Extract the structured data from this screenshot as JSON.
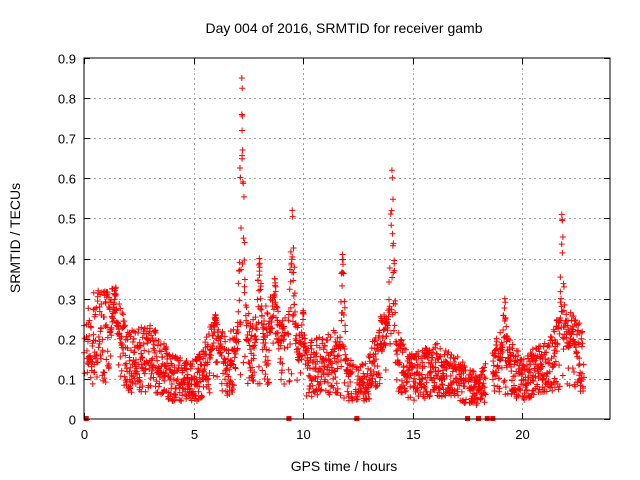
{
  "chart_data": {
    "type": "scatter",
    "title": "Day 004 of 2016, SRMTID for receiver gamb",
    "xlabel": "GPS time / hours",
    "ylabel": "SRMTID / TECUs",
    "xlim": [
      0,
      24
    ],
    "ylim": [
      0,
      0.9
    ],
    "x_ticks": [
      0,
      5,
      10,
      15,
      20
    ],
    "x_tick_labels": [
      "0",
      "5",
      "10",
      "15",
      "20"
    ],
    "y_ticks": [
      0,
      0.1,
      0.2,
      0.3,
      0.4,
      0.5,
      0.6,
      0.7,
      0.8,
      0.9
    ],
    "y_tick_labels": [
      "0",
      "0.1",
      "0.2",
      "0.3",
      "0.4",
      "0.5",
      "0.6",
      "0.7",
      "0.8",
      "0.9"
    ],
    "grid": true,
    "marker": "+",
    "color": "#ff0000",
    "x_step_hours": 0.025,
    "series": [
      {
        "name": "SRMTID",
        "baseline": [
          [
            0,
            0.17
          ],
          [
            0.5,
            0.2
          ],
          [
            1,
            0.2
          ],
          [
            1.5,
            0.22
          ],
          [
            2,
            0.14
          ],
          [
            3,
            0.15
          ],
          [
            3.5,
            0.13
          ],
          [
            4,
            0.1
          ],
          [
            5,
            0.09
          ],
          [
            5.5,
            0.12
          ],
          [
            6,
            0.17
          ],
          [
            6.5,
            0.13
          ],
          [
            7,
            0.15
          ],
          [
            7.5,
            0.18
          ],
          [
            8,
            0.15
          ],
          [
            8.5,
            0.2
          ],
          [
            9,
            0.16
          ],
          [
            9.5,
            0.18
          ],
          [
            10,
            0.12
          ],
          [
            11,
            0.13
          ],
          [
            11.5,
            0.14
          ],
          [
            12,
            0.1
          ],
          [
            12.5,
            0.08
          ],
          [
            13,
            0.1
          ],
          [
            13.5,
            0.16
          ],
          [
            14,
            0.17
          ],
          [
            14.5,
            0.12
          ],
          [
            15,
            0.1
          ],
          [
            16,
            0.12
          ],
          [
            17,
            0.1
          ],
          [
            17.5,
            0.08
          ],
          [
            18,
            0.07
          ],
          [
            18.5,
            0.1
          ],
          [
            19,
            0.14
          ],
          [
            19.5,
            0.12
          ],
          [
            20,
            0.1
          ],
          [
            21,
            0.12
          ],
          [
            21.5,
            0.15
          ],
          [
            22,
            0.18
          ],
          [
            22.8,
            0.14
          ]
        ],
        "peaks": [
          [
            1.4,
            0.32
          ],
          [
            6,
            0.26
          ],
          [
            7.2,
            0.85
          ],
          [
            8,
            0.4
          ],
          [
            8.7,
            0.35
          ],
          [
            9.5,
            0.52
          ],
          [
            10,
            0.27
          ],
          [
            11.8,
            0.41
          ],
          [
            13.8,
            0.25
          ],
          [
            14.05,
            0.62
          ],
          [
            19.2,
            0.3
          ],
          [
            21.8,
            0.51
          ],
          [
            22.3,
            0.23
          ]
        ],
        "gaps": [
          [
            0.05,
            0.1
          ],
          [
            9.2,
            9.3
          ],
          [
            12.3,
            12.4
          ],
          [
            17.45,
            17.55
          ],
          [
            18.35,
            18.65
          ]
        ],
        "zero_markers": [
          0.1,
          9.35,
          12.45,
          17.5,
          18.0,
          18.4,
          18.65
        ]
      }
    ]
  }
}
